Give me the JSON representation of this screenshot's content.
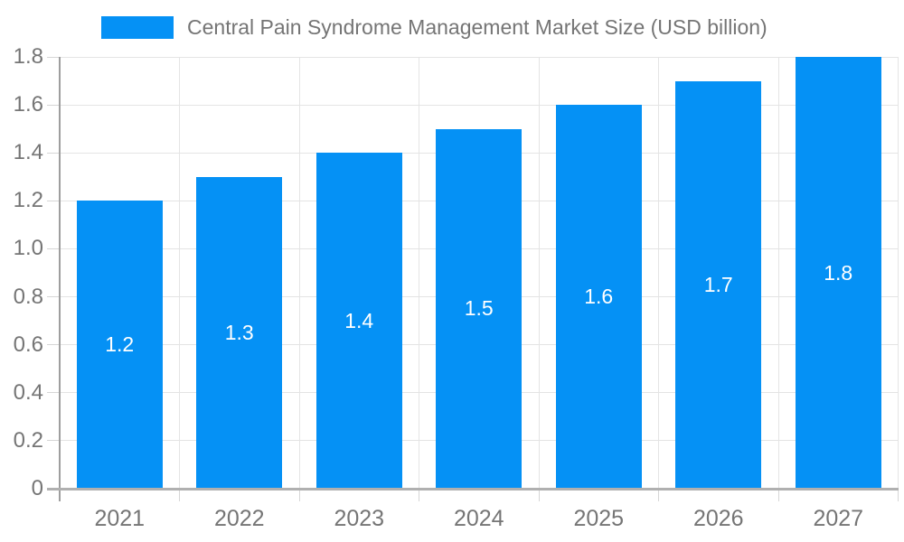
{
  "legend": {
    "label": "Central Pain Syndrome Management Market Size (USD billion)"
  },
  "chart_data": {
    "type": "bar",
    "title": "Central Pain Syndrome Management Market Size (USD billion)",
    "categories": [
      "2021",
      "2022",
      "2023",
      "2024",
      "2025",
      "2026",
      "2027"
    ],
    "values": [
      1.2,
      1.3,
      1.4,
      1.5,
      1.6,
      1.7,
      1.8
    ],
    "bar_labels": [
      "1.2",
      "1.3",
      "1.4",
      "1.5",
      "1.6",
      "1.7",
      "1.8"
    ],
    "y_ticks": [
      0,
      0.2,
      0.4,
      0.6,
      0.8,
      1.0,
      1.2,
      1.4,
      1.6,
      1.8
    ],
    "y_tick_labels": [
      "0",
      "0.2",
      "0.4",
      "0.6",
      "0.8",
      "1.0",
      "1.2",
      "1.4",
      "1.6",
      "1.8"
    ],
    "ylim": [
      0,
      1.8
    ],
    "xlabel": "",
    "ylabel": "",
    "grid": true,
    "legend_position": "top",
    "colors": {
      "bar": "#0591f5",
      "axis_text": "#757575",
      "value_label": "#ffffff",
      "gridline": "#e4e4e4",
      "axis_line": "#9e9e9e",
      "baseline": "#b0b0b0"
    }
  }
}
